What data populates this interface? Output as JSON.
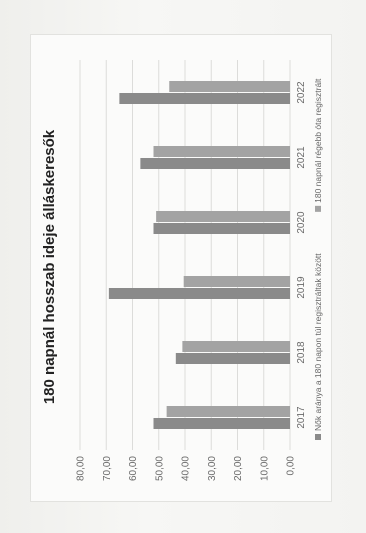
{
  "chart_data": {
    "type": "bar",
    "orientation": "horizontal",
    "title": "180 napnál hosszab ideje álláskeresők",
    "categories": [
      "2022",
      "2021",
      "2020",
      "2019",
      "2018",
      "2017"
    ],
    "series": [
      {
        "name": "Nők aránya a 180 napon túl regisztráltak között",
        "values": [
          65.0,
          57.0,
          52.0,
          69.0,
          43.5,
          52.0
        ],
        "color": "#8a8a8a"
      },
      {
        "name": "180 napnál régebb óta regisztrált",
        "values": [
          46.0,
          52.0,
          51.0,
          40.5,
          41.0,
          47.0
        ],
        "color": "#a3a3a3"
      }
    ],
    "xlim": [
      0,
      80
    ],
    "xticks": [
      "0,00",
      "10,00",
      "20,00",
      "30,00",
      "40,00",
      "50,00",
      "60,00",
      "70,00",
      "80,00"
    ],
    "grid": true,
    "legend_position": "bottom"
  }
}
